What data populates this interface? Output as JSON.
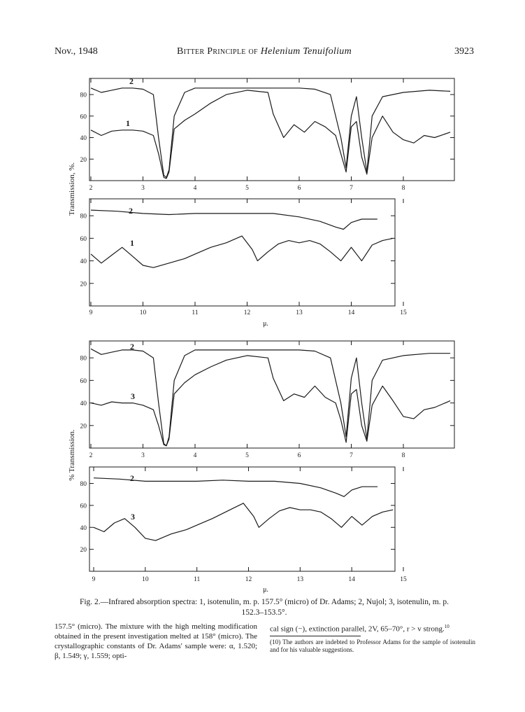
{
  "header": {
    "left": "Nov., 1948",
    "title_prefix": "Bitter Principle of ",
    "title_italic": "Helenium Tenuifolium",
    "page_number": "3923"
  },
  "figure": {
    "ylabel_top": "Transmission, %.",
    "ylabel_bottom": "% Transmission.",
    "xlabel_unit": "μ.",
    "y_ticks": [
      "80",
      "60",
      "40",
      "20"
    ],
    "x_ticks_short": [
      "2",
      "3",
      "4",
      "5",
      "6",
      "7",
      "8"
    ],
    "x_ticks_long": [
      "9",
      "10",
      "11",
      "12",
      "13",
      "14",
      "15"
    ]
  },
  "chart_data": [
    {
      "type": "line",
      "panel": "upper pair, short wavelengths",
      "x_unit": "μ",
      "y_unit": "% transmission",
      "xlim": [
        2,
        9
      ],
      "ylim": [
        0,
        95
      ],
      "series": [
        {
          "name": "2",
          "x": [
            2.0,
            2.2,
            2.4,
            2.6,
            2.8,
            3.0,
            3.2,
            3.3,
            3.4,
            3.45,
            3.5,
            3.6,
            3.8,
            4.0,
            4.5,
            5.0,
            5.5,
            6.0,
            6.3,
            6.6,
            6.8,
            6.9,
            7.0,
            7.1,
            7.2,
            7.3,
            7.4,
            7.6,
            8.0,
            8.5,
            8.9
          ],
          "values": [
            86,
            82,
            84,
            86,
            86,
            85,
            80,
            40,
            5,
            3,
            10,
            60,
            82,
            86,
            86,
            86,
            86,
            86,
            85,
            80,
            40,
            12,
            60,
            78,
            40,
            8,
            60,
            78,
            82,
            84,
            83
          ]
        },
        {
          "name": "1",
          "x": [
            2.0,
            2.2,
            2.4,
            2.6,
            2.8,
            3.0,
            3.2,
            3.3,
            3.4,
            3.45,
            3.5,
            3.6,
            3.8,
            4.0,
            4.3,
            4.6,
            5.0,
            5.4,
            5.5,
            5.7,
            5.9,
            6.1,
            6.3,
            6.5,
            6.7,
            6.8,
            6.9,
            7.0,
            7.1,
            7.2,
            7.3,
            7.4,
            7.6,
            7.8,
            8.0,
            8.2,
            8.4,
            8.6,
            8.9
          ],
          "values": [
            47,
            42,
            46,
            47,
            47,
            46,
            42,
            25,
            3,
            2,
            8,
            48,
            56,
            62,
            72,
            80,
            84,
            82,
            62,
            40,
            52,
            45,
            55,
            50,
            42,
            25,
            8,
            50,
            55,
            22,
            6,
            40,
            60,
            45,
            38,
            35,
            42,
            40,
            45
          ]
        }
      ]
    },
    {
      "type": "line",
      "panel": "upper pair, long wavelengths",
      "x_unit": "μ",
      "y_unit": "% transmission",
      "xlim": [
        9,
        15
      ],
      "ylim": [
        0,
        95
      ],
      "series": [
        {
          "name": "2",
          "x": [
            9.0,
            9.5,
            10.0,
            10.5,
            11.0,
            11.5,
            12.0,
            12.5,
            13.0,
            13.4,
            13.7,
            13.85,
            14.0,
            14.2,
            14.5
          ],
          "values": [
            85,
            84,
            82,
            81,
            82,
            82,
            82,
            82,
            79,
            75,
            70,
            68,
            74,
            77,
            77
          ]
        },
        {
          "name": "1",
          "x": [
            9.0,
            9.2,
            9.4,
            9.6,
            9.8,
            10.0,
            10.2,
            10.5,
            10.8,
            11.0,
            11.3,
            11.6,
            11.9,
            12.1,
            12.2,
            12.4,
            12.6,
            12.8,
            13.0,
            13.2,
            13.4,
            13.6,
            13.8,
            14.0,
            14.2,
            14.4,
            14.6,
            14.8
          ],
          "values": [
            46,
            38,
            45,
            52,
            44,
            36,
            34,
            38,
            42,
            46,
            52,
            56,
            62,
            50,
            40,
            48,
            55,
            58,
            56,
            58,
            55,
            48,
            40,
            52,
            40,
            54,
            58,
            60
          ]
        }
      ]
    },
    {
      "type": "line",
      "panel": "lower pair, short wavelengths",
      "x_unit": "μ",
      "y_unit": "% transmission",
      "xlim": [
        2,
        9
      ],
      "ylim": [
        0,
        95
      ],
      "series": [
        {
          "name": "2",
          "x": [
            2.0,
            2.2,
            2.4,
            2.6,
            2.8,
            3.0,
            3.2,
            3.3,
            3.4,
            3.45,
            3.5,
            3.6,
            3.8,
            4.0,
            4.5,
            5.0,
            5.5,
            6.0,
            6.3,
            6.6,
            6.8,
            6.9,
            7.0,
            7.1,
            7.2,
            7.3,
            7.4,
            7.6,
            8.0,
            8.5,
            8.9
          ],
          "values": [
            88,
            83,
            85,
            87,
            87,
            86,
            80,
            40,
            4,
            2,
            10,
            60,
            82,
            87,
            87,
            87,
            87,
            87,
            86,
            80,
            40,
            10,
            62,
            80,
            40,
            8,
            60,
            78,
            82,
            84,
            84
          ]
        },
        {
          "name": "3",
          "x": [
            2.0,
            2.2,
            2.4,
            2.6,
            2.8,
            3.0,
            3.2,
            3.3,
            3.4,
            3.45,
            3.5,
            3.6,
            3.8,
            4.0,
            4.3,
            4.6,
            5.0,
            5.4,
            5.5,
            5.7,
            5.9,
            6.1,
            6.3,
            6.5,
            6.7,
            6.8,
            6.9,
            7.0,
            7.1,
            7.2,
            7.3,
            7.4,
            7.6,
            7.8,
            8.0,
            8.2,
            8.4,
            8.6,
            8.9
          ],
          "values": [
            40,
            38,
            41,
            40,
            40,
            38,
            34,
            20,
            3,
            2,
            8,
            48,
            58,
            65,
            72,
            78,
            82,
            80,
            62,
            42,
            48,
            45,
            55,
            45,
            40,
            25,
            5,
            48,
            52,
            20,
            6,
            38,
            55,
            42,
            28,
            26,
            34,
            36,
            42
          ]
        }
      ]
    },
    {
      "type": "line",
      "panel": "lower pair, long wavelengths",
      "x_unit": "μ",
      "y_unit": "% transmission",
      "xlim": [
        9,
        15
      ],
      "ylim": [
        0,
        95
      ],
      "series": [
        {
          "name": "2",
          "x": [
            9.0,
            9.5,
            10.0,
            10.5,
            11.0,
            11.5,
            12.0,
            12.5,
            13.0,
            13.4,
            13.7,
            13.85,
            14.0,
            14.2,
            14.5
          ],
          "values": [
            85,
            84,
            82,
            82,
            82,
            83,
            82,
            82,
            80,
            76,
            71,
            68,
            74,
            77,
            77
          ]
        },
        {
          "name": "3",
          "x": [
            9.0,
            9.2,
            9.4,
            9.6,
            9.8,
            10.0,
            10.2,
            10.5,
            10.8,
            11.0,
            11.3,
            11.6,
            11.9,
            12.1,
            12.2,
            12.4,
            12.6,
            12.8,
            13.0,
            13.2,
            13.4,
            13.6,
            13.8,
            14.0,
            14.2,
            14.4,
            14.6,
            14.8
          ],
          "values": [
            40,
            36,
            44,
            48,
            40,
            30,
            28,
            34,
            38,
            42,
            48,
            55,
            62,
            50,
            40,
            48,
            55,
            58,
            56,
            56,
            54,
            48,
            40,
            50,
            42,
            50,
            54,
            56
          ]
        }
      ]
    }
  ],
  "caption": {
    "line1": "Fig. 2.—Infrared absorption spectra:  1, isotenulin, m. p. 157.5° (micro) of Dr. Adams;  2, Nujol;  3, isotenulin, m. p.",
    "line2": "152.3–153.5°."
  },
  "body_left": "157.5° (micro).  The mixture with the high melting modification obtained in the present investigation melted at 158° (micro).  The crystallographic constants of Dr. Adams' sample were: α, 1.520; β, 1.549; γ, 1.559; opti-",
  "body_right": "cal sign (−), extinction parallel, 2V, 65–70°, r > v strong.",
  "body_right_ref": "10",
  "footnote": "(10) The authors are indebted to Professor Adams for the sample of isotenulin and for his valuable suggestions.",
  "colors": {
    "ink": "#1a1a1a",
    "paper": "#ffffff"
  }
}
